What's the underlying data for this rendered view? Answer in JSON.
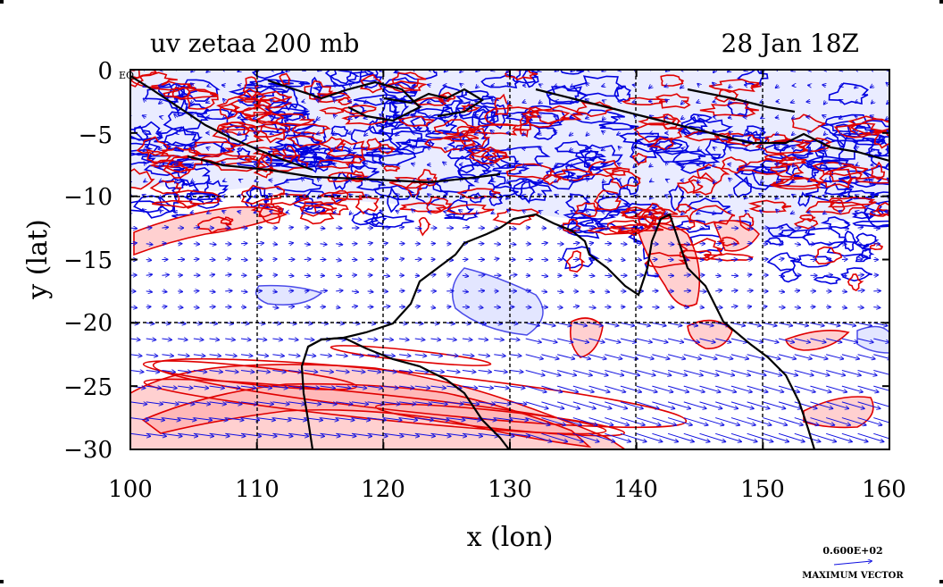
{
  "chart_data": {
    "type": "contour-map",
    "title_left": "uv zetaa 200 mb",
    "title_right": "28 Jan 18Z",
    "xlabel": "x (lon)",
    "ylabel": "y (lat)",
    "xlim": [
      100,
      160
    ],
    "ylim": [
      -30,
      0
    ],
    "x_ticks": [
      "100",
      "110",
      "120",
      "130",
      "140",
      "150",
      "160"
    ],
    "y_ticks": [
      "0",
      "−5",
      "−10",
      "−15",
      "−20",
      "−25",
      "−30"
    ],
    "corner_label": "EQ",
    "grid_lon": [
      110,
      120,
      130,
      140,
      150
    ],
    "grid_lat": [
      -10,
      -20
    ],
    "colors": {
      "positive_contour": "#e00000",
      "positive_fill": "#ffd0d0",
      "negative_contour": "#0000e0",
      "negative_fill": "#d8dcff",
      "vectors": "#1010e0",
      "coast": "#000000"
    },
    "legend": {
      "vector_value": "0.600E+02",
      "vector_caption": "MAXIMUM VECTOR"
    }
  }
}
